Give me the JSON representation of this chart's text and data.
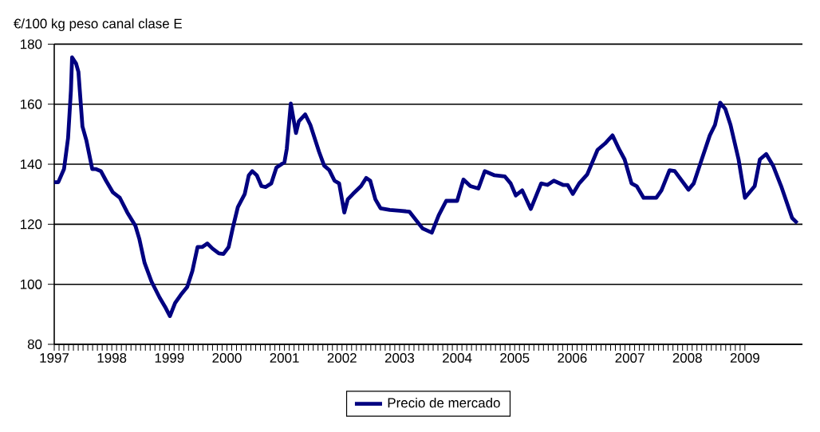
{
  "chart_data": {
    "type": "line",
    "ylabel": "€/100 kg peso canal clase E",
    "x": [
      1997.0,
      1997.07,
      1997.17,
      1997.24,
      1997.29,
      1997.31,
      1997.38,
      1997.42,
      1997.49,
      1997.56,
      1997.66,
      1997.72,
      1997.81,
      1997.9,
      1998.02,
      1998.14,
      1998.27,
      1998.41,
      1998.48,
      1998.57,
      1998.69,
      1998.83,
      1998.94,
      1999.01,
      1999.1,
      1999.2,
      1999.31,
      1999.4,
      1999.49,
      1999.57,
      1999.66,
      1999.75,
      1999.86,
      1999.94,
      2000.03,
      2000.1,
      2000.19,
      2000.31,
      2000.38,
      2000.44,
      2000.52,
      2000.6,
      2000.67,
      2000.77,
      2000.86,
      2001.0,
      2001.04,
      2001.11,
      2001.15,
      2001.2,
      2001.25,
      2001.36,
      2001.45,
      2001.6,
      2001.69,
      2001.78,
      2001.87,
      2001.95,
      2002.04,
      2002.1,
      2002.19,
      2002.33,
      2002.42,
      2002.49,
      2002.58,
      2002.67,
      2002.83,
      2003.0,
      2003.17,
      2003.4,
      2003.56,
      2003.68,
      2003.81,
      2004.0,
      2004.11,
      2004.23,
      2004.37,
      2004.48,
      2004.65,
      2004.83,
      2004.93,
      2005.02,
      2005.13,
      2005.28,
      2005.46,
      2005.57,
      2005.68,
      2005.84,
      2005.92,
      2006.01,
      2006.12,
      2006.26,
      2006.44,
      2006.57,
      2006.7,
      2006.82,
      2006.91,
      2007.03,
      2007.12,
      2007.24,
      2007.46,
      2007.55,
      2007.69,
      2007.78,
      2008.02,
      2008.11,
      2008.25,
      2008.39,
      2008.48,
      2008.57,
      2008.66,
      2008.75,
      2008.89,
      2009.0,
      2009.17,
      2009.26,
      2009.37,
      2009.49,
      2009.63,
      2009.82,
      2009.91
    ],
    "series": [
      {
        "name": "Precio de mercado",
        "color": "#000080",
        "values": [
          134,
          134,
          138.4,
          148.7,
          164.6,
          175.6,
          173.5,
          170.8,
          152.6,
          147.8,
          138.4,
          138.4,
          137.7,
          134.5,
          130.6,
          128.8,
          123.9,
          119.5,
          115,
          107.1,
          100.9,
          95.6,
          92,
          89.4,
          93.8,
          96.5,
          99.1,
          104.4,
          112.4,
          112.4,
          113.6,
          111.9,
          110.3,
          110.1,
          112.4,
          118.6,
          125.7,
          130.1,
          136.3,
          137.7,
          136.3,
          132.7,
          132.4,
          133.6,
          138.9,
          140.7,
          145.1,
          160.2,
          155.8,
          150.4,
          154.3,
          156.6,
          153.1,
          144.2,
          139.5,
          138,
          134.5,
          133.6,
          123.9,
          128.3,
          130.1,
          132.7,
          135.4,
          134.5,
          128.3,
          125.3,
          124.8,
          124.5,
          124.2,
          118.6,
          117.2,
          123,
          127.8,
          127.8,
          134.9,
          132.7,
          131.9,
          137.7,
          136.3,
          135.9,
          133.6,
          129.6,
          131.3,
          125.1,
          133.6,
          133.1,
          134.5,
          133.1,
          133.1,
          130.1,
          133.6,
          136.6,
          144.8,
          146.9,
          149.6,
          144.8,
          141.6,
          133.6,
          132.7,
          128.8,
          128.8,
          131.3,
          138,
          137.7,
          131.5,
          133.6,
          141.6,
          149.6,
          153.1,
          160.5,
          158.4,
          153.1,
          141.6,
          128.8,
          132.7,
          141.6,
          143.4,
          139.5,
          132.7,
          122.1,
          120.4
        ]
      }
    ],
    "xlim": [
      1997,
      2010
    ],
    "xticks": [
      1997,
      1998,
      1999,
      2000,
      2001,
      2002,
      2003,
      2004,
      2005,
      2006,
      2007,
      2008,
      2009
    ],
    "ylim": [
      80,
      180
    ],
    "yticks": [
      80,
      100,
      120,
      140,
      160,
      180
    ],
    "grid": "y",
    "legend": "bottom",
    "marker": "none",
    "line_style": "solid"
  }
}
